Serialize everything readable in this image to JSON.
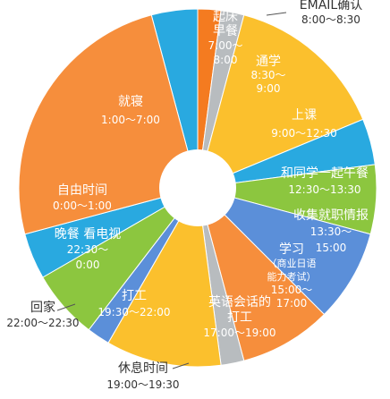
{
  "chart_data": {
    "type": "pie",
    "variant": "donut",
    "unit": "hours of day (24h clock)",
    "slices": [
      {
        "name": "起床早餐",
        "time": "7:00～8:00",
        "start": 7.0,
        "end": 8.0,
        "color": "#29a9e0",
        "text_color": "#ffffff",
        "lines": [
          "起床",
          "早餐",
          "7:00～",
          "8:00"
        ]
      },
      {
        "name": "EMAIL确认",
        "time": "8:00～8:30",
        "start": 8.0,
        "end": 8.5,
        "color": "#f47b20",
        "text_color": "#333333",
        "lines": [
          "EMAIL确认",
          "8:00～8:30"
        ]
      },
      {
        "name": "通学",
        "time": "8:30～9:00",
        "start": 8.5,
        "end": 9.0,
        "color": "#b8bcbf",
        "text_color": "#ffffff",
        "lines": [
          "通学",
          "8:30～",
          "9:00"
        ]
      },
      {
        "name": "上课",
        "time": "9:00～12:30",
        "start": 9.0,
        "end": 12.5,
        "color": "#fbc02d",
        "text_color": "#ffffff",
        "lines": [
          "上课",
          "9:00～12:30"
        ]
      },
      {
        "name": "和同学一起午餐",
        "time": "12:30～13:30",
        "start": 12.5,
        "end": 13.5,
        "color": "#29a9e0",
        "text_color": "#ffffff",
        "lines": [
          "和同学一起午餐",
          "12:30～13:30"
        ]
      },
      {
        "name": "收集就职情报",
        "time": "13:30～15:00",
        "start": 13.5,
        "end": 15.0,
        "color": "#8cc63f",
        "text_color": "#ffffff",
        "lines": [
          "收集就职情报",
          "13:30～",
          "15:00"
        ]
      },
      {
        "name": "学习",
        "note": "（商业日语能力考试）",
        "time": "15:00～17:00",
        "start": 15.0,
        "end": 17.0,
        "color": "#5b8fd9",
        "text_color": "#ffffff",
        "lines": [
          "学习",
          "（商业日语",
          "能力考试）",
          "15:00～",
          "17:00"
        ]
      },
      {
        "name": "英语会话的打工",
        "time": "17:00～19:00",
        "start": 17.0,
        "end": 19.0,
        "color": "#f68e3c",
        "text_color": "#ffffff",
        "lines": [
          "英语会话的",
          "打工",
          "17:00～19:00"
        ]
      },
      {
        "name": "休息时间",
        "time": "19:00～19:30",
        "start": 19.0,
        "end": 19.5,
        "color": "#b8bcbf",
        "text_color": "#333333",
        "lines": [
          "休息时间",
          "19:00～19:30"
        ]
      },
      {
        "name": "打工",
        "time": "19:30～22:00",
        "start": 19.5,
        "end": 22.0,
        "color": "#fbc02d",
        "text_color": "#ffffff",
        "lines": [
          "打工",
          "19:30～22:00"
        ]
      },
      {
        "name": "回家",
        "time": "22:00～22:30",
        "start": 22.0,
        "end": 22.5,
        "color": "#5b8fd9",
        "text_color": "#333333",
        "lines": [
          "回家",
          "22:00～22:30"
        ]
      },
      {
        "name": "晚餐 看电视",
        "time": "22:30～0:00",
        "start": 22.5,
        "end": 24.0,
        "color": "#8cc63f",
        "text_color": "#ffffff",
        "lines": [
          "晚餐 看电视",
          "22:30～",
          "0:00"
        ]
      },
      {
        "name": "自由时间",
        "time": "0:00～1:00",
        "start": 0.0,
        "end": 1.0,
        "color": "#29a9e0",
        "text_color": "#ffffff",
        "lines": [
          "自由时间",
          "0:00～1:00"
        ]
      },
      {
        "name": "就寝",
        "time": "1:00～7:00",
        "start": 1.0,
        "end": 7.0,
        "color": "#f68e3c",
        "text_color": "#ffffff",
        "lines": [
          "就寝",
          "1:00～7:00"
        ]
      }
    ]
  }
}
